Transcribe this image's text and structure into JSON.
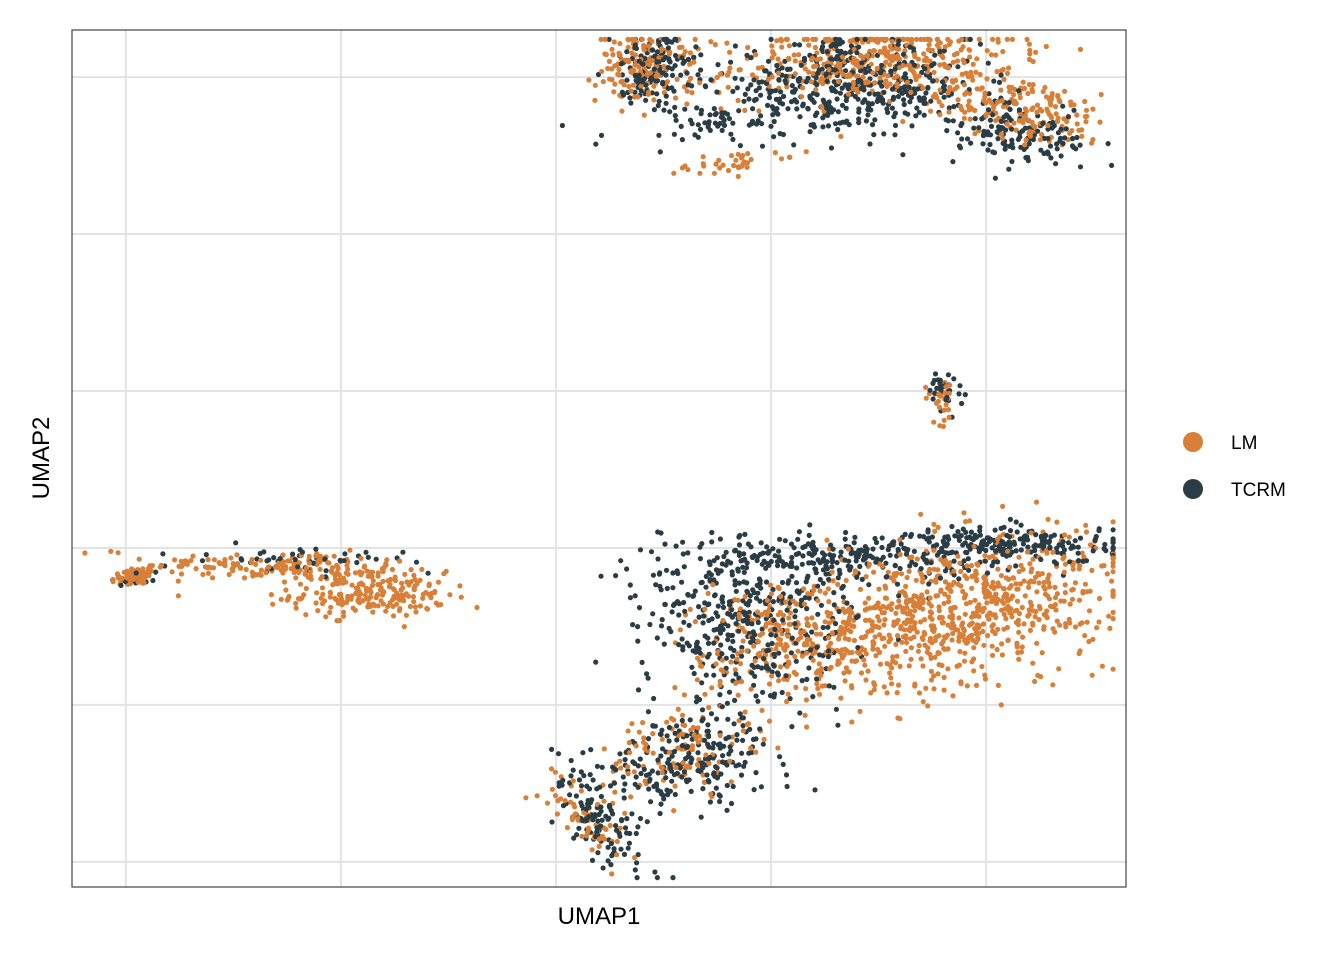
{
  "chart_data": {
    "type": "scatter",
    "title": "",
    "xlabel": "UMAP1",
    "ylabel": "UMAP2",
    "xlim": [
      -12.5,
      12
    ],
    "ylim": [
      -12.3,
      15
    ],
    "x_gridlines": [
      -11.25,
      -6.25,
      -1.25,
      3.75,
      8.75
    ],
    "y_gridlines": [
      -11.5,
      -6.5,
      -1.5,
      3.5,
      8.5,
      13.5
    ],
    "tick_labels_shown": false,
    "grid": true,
    "legend_position": "right",
    "series": [
      {
        "name": "LM",
        "color": "#d87f38",
        "clusters": [
          {
            "n": 70,
            "cx": -11.0,
            "cy": -2.4,
            "sx": 0.3,
            "sy": 0.15,
            "rot": 0.3
          },
          {
            "n": 160,
            "cx": -7.5,
            "cy": -2.1,
            "sx": 1.6,
            "sy": 0.25,
            "rot": -0.05
          },
          {
            "n": 200,
            "cx": -5.6,
            "cy": -3.0,
            "sx": 0.9,
            "sy": 0.35,
            "rot": 0
          },
          {
            "n": 140,
            "cx": 0.8,
            "cy": 13.8,
            "sx": 0.55,
            "sy": 0.55,
            "rot": 0
          },
          {
            "n": 35,
            "cx": 3.0,
            "cy": 10.8,
            "sx": 0.15,
            "sy": 0.8,
            "rot": -1.35
          },
          {
            "n": 380,
            "cx": 6.0,
            "cy": 14.0,
            "sx": 1.7,
            "sy": 0.6,
            "rot": 0.1
          },
          {
            "n": 200,
            "cx": 9.5,
            "cy": 12.5,
            "sx": 1.2,
            "sy": 0.5,
            "rot": -0.3
          },
          {
            "n": 30,
            "cx": 7.7,
            "cy": 3.3,
            "sx": 0.2,
            "sy": 0.4,
            "rot": 0
          },
          {
            "n": 800,
            "cx": 8.0,
            "cy": -3.5,
            "sx": 1.9,
            "sy": 1.1,
            "rot": 0.3
          },
          {
            "n": 220,
            "cx": 4.0,
            "cy": -4.5,
            "sx": 1.2,
            "sy": 1.0,
            "rot": 0.5
          },
          {
            "n": 110,
            "cx": 1.5,
            "cy": -8.0,
            "sx": 0.9,
            "sy": 0.7,
            "rot": 0.3
          },
          {
            "n": 60,
            "cx": -0.5,
            "cy": -10.3,
            "sx": 0.4,
            "sy": 0.9,
            "rot": 0.5
          }
        ]
      },
      {
        "name": "TCRM",
        "color": "#2a3d45",
        "clusters": [
          {
            "n": 20,
            "cx": -11.1,
            "cy": -2.5,
            "sx": 0.25,
            "sy": 0.1,
            "rot": 0.3
          },
          {
            "n": 50,
            "cx": -7.0,
            "cy": -1.9,
            "sx": 1.1,
            "sy": 0.2,
            "rot": -0.05
          },
          {
            "n": 140,
            "cx": 1.0,
            "cy": 13.8,
            "sx": 0.5,
            "sy": 0.55,
            "rot": 0
          },
          {
            "n": 60,
            "cx": 2.5,
            "cy": 12.0,
            "sx": 1.3,
            "sy": 0.4,
            "rot": 0.1
          },
          {
            "n": 420,
            "cx": 5.5,
            "cy": 13.2,
            "sx": 1.5,
            "sy": 0.7,
            "rot": 0
          },
          {
            "n": 150,
            "cx": 9.3,
            "cy": 11.8,
            "sx": 1.0,
            "sy": 0.45,
            "rot": -0.35
          },
          {
            "n": 30,
            "cx": 7.8,
            "cy": 3.5,
            "sx": 0.2,
            "sy": 0.3,
            "rot": 0
          },
          {
            "n": 260,
            "cx": 5.3,
            "cy": -1.8,
            "sx": 2.0,
            "sy": 0.4,
            "rot": 0.05
          },
          {
            "n": 180,
            "cx": 9.5,
            "cy": -1.4,
            "sx": 1.2,
            "sy": 0.3,
            "rot": 0
          },
          {
            "n": 380,
            "cx": 3.2,
            "cy": -4.0,
            "sx": 1.2,
            "sy": 1.3,
            "rot": 0.4
          },
          {
            "n": 220,
            "cx": 1.8,
            "cy": -8.3,
            "sx": 1.1,
            "sy": 0.7,
            "rot": 0.3
          },
          {
            "n": 110,
            "cx": -0.3,
            "cy": -10.0,
            "sx": 0.35,
            "sy": 0.9,
            "rot": 0.5
          }
        ]
      }
    ]
  }
}
